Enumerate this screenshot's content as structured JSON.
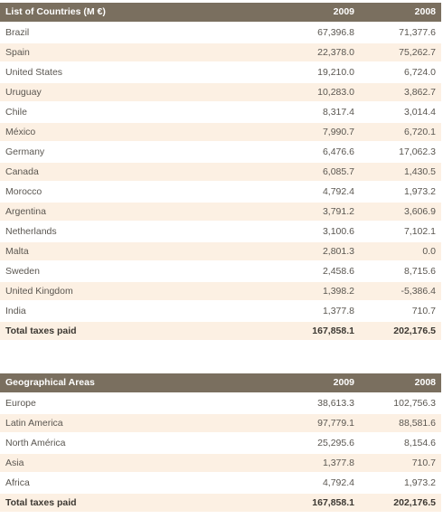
{
  "countries_table": {
    "header": {
      "label": "List of Countries (M €)",
      "col1": "2009",
      "col2": "2008"
    },
    "rows": [
      {
        "name": "Brazil",
        "v2009": "67,396.8",
        "v2008": "71,377.6"
      },
      {
        "name": "Spain",
        "v2009": "22,378.0",
        "v2008": "75,262.7"
      },
      {
        "name": "United States",
        "v2009": "19,210.0",
        "v2008": "6,724.0"
      },
      {
        "name": "Uruguay",
        "v2009": "10,283.0",
        "v2008": "3,862.7"
      },
      {
        "name": "Chile",
        "v2009": "8,317.4",
        "v2008": "3,014.4"
      },
      {
        "name": "México",
        "v2009": "7,990.7",
        "v2008": "6,720.1"
      },
      {
        "name": "Germany",
        "v2009": "6,476.6",
        "v2008": "17,062.3"
      },
      {
        "name": "Canada",
        "v2009": "6,085.7",
        "v2008": "1,430.5"
      },
      {
        "name": "Morocco",
        "v2009": "4,792.4",
        "v2008": "1,973.2"
      },
      {
        "name": "Argentina",
        "v2009": "3,791.2",
        "v2008": "3,606.9"
      },
      {
        "name": "Netherlands",
        "v2009": "3,100.6",
        "v2008": "7,102.1"
      },
      {
        "name": "Malta",
        "v2009": "2,801.3",
        "v2008": "0.0"
      },
      {
        "name": "Sweden",
        "v2009": "2,458.6",
        "v2008": "8,715.6"
      },
      {
        "name": "United Kingdom",
        "v2009": "1,398.2",
        "v2008": "-5,386.4"
      },
      {
        "name": "India",
        "v2009": "1,377.8",
        "v2008": "710.7"
      }
    ],
    "total": {
      "label": "Total taxes paid",
      "v2009": "167,858.1",
      "v2008": "202,176.5"
    }
  },
  "areas_table": {
    "header": {
      "label": "Geographical Areas",
      "col1": "2009",
      "col2": "2008"
    },
    "rows": [
      {
        "name": "Europe",
        "v2009": "38,613.3",
        "v2008": "102,756.3"
      },
      {
        "name": "Latin America",
        "v2009": "97,779.1",
        "v2008": "88,581.6"
      },
      {
        "name": "North América",
        "v2009": "25,295.6",
        "v2008": "8,154.6"
      },
      {
        "name": "Asia",
        "v2009": "1,377.8",
        "v2008": "710.7"
      },
      {
        "name": "Africa",
        "v2009": "4,792.4",
        "v2008": "1,973.2"
      }
    ],
    "total": {
      "label": "Total taxes paid",
      "v2009": "167,858.1",
      "v2008": "202,176.5"
    }
  },
  "colors": {
    "header_bg": "#7a6f5f",
    "stripe_bg": "#fcf0e3",
    "text": "#5a5650"
  }
}
